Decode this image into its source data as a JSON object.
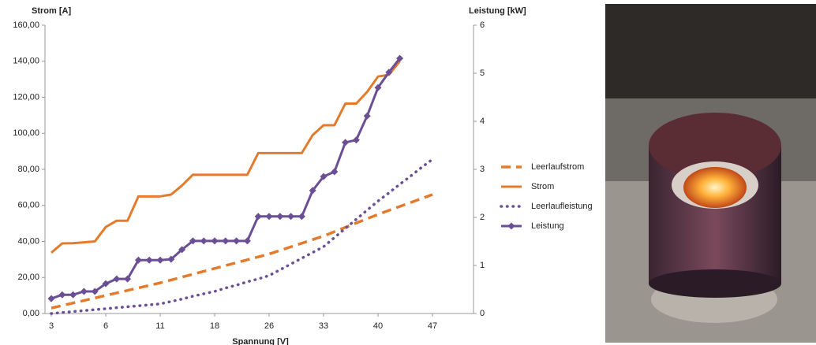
{
  "chart_data": {
    "type": "line",
    "ylabel": "Strom [A]",
    "y2label": "Leistung [kW]",
    "xlabel": "Spannung [V]",
    "categories": [
      3,
      null,
      null,
      null,
      null,
      6,
      null,
      null,
      null,
      null,
      11,
      null,
      null,
      null,
      null,
      18,
      null,
      null,
      null,
      null,
      26,
      null,
      null,
      null,
      null,
      33,
      null,
      null,
      null,
      null,
      40,
      null,
      null,
      null,
      null,
      47
    ],
    "ylim": [
      0,
      160
    ],
    "yticks": [
      {
        "value": 0,
        "label": "0,00"
      },
      {
        "value": 20,
        "label": "20,00"
      },
      {
        "value": 40,
        "label": "40,00"
      },
      {
        "value": 60,
        "label": "60,00"
      },
      {
        "value": 80,
        "label": "80,00"
      },
      {
        "value": 100,
        "label": "100,00"
      },
      {
        "value": 120,
        "label": "120,00"
      },
      {
        "value": 140,
        "label": "140,00"
      },
      {
        "value": 160,
        "label": "160,00"
      }
    ],
    "y2lim": [
      0,
      6
    ],
    "y2ticks": [
      0,
      1,
      2,
      3,
      4,
      5,
      6
    ],
    "grid": false,
    "legend": "right",
    "series": [
      {
        "name": "Leerlaufstrom",
        "color": "#e47b2c",
        "style": "dashed",
        "values": [
          3,
          4.4,
          5.8,
          7.2,
          8.6,
          10,
          11.4,
          12.8,
          14.2,
          15.6,
          17,
          18.6,
          20.2,
          21.8,
          23.4,
          25,
          26.6,
          28.2,
          29.8,
          31.4,
          33,
          35,
          37,
          39,
          41,
          43,
          45.4,
          47.8,
          50.2,
          52.6,
          55,
          57.2,
          59.4,
          61.6,
          63.8,
          66
        ]
      },
      {
        "name": "Strom",
        "color": "#e47b2c",
        "style": "solid",
        "values": [
          33.7,
          38.9,
          39,
          39.5,
          40,
          48,
          51.5,
          51.5,
          65,
          65,
          65,
          66,
          71,
          77,
          77,
          77,
          77,
          77,
          77,
          89,
          89,
          89,
          89,
          89,
          99,
          104.5,
          104.5,
          116.5,
          116.5,
          123,
          131.5,
          132.5,
          140,
          null,
          null,
          null
        ]
      },
      {
        "name": "Leerlaufleistung",
        "color": "#6a4f94",
        "style": "dotted",
        "axis": "y2",
        "values": [
          0,
          0.02,
          0.04,
          0.06,
          0.08,
          0.1,
          0.12,
          0.14,
          0.16,
          0.18,
          0.2,
          0.25,
          0.3,
          0.36,
          0.41,
          0.46,
          0.53,
          0.59,
          0.66,
          0.72,
          0.79,
          0.91,
          1.03,
          1.15,
          1.27,
          1.39,
          1.58,
          1.77,
          1.96,
          2.15,
          2.34,
          2.51,
          2.69,
          2.86,
          3.04,
          3.21
        ]
      },
      {
        "name": "Leistung",
        "color": "#6a4f94",
        "style": "solid",
        "marker": "diamond",
        "axis": "y2",
        "values": [
          0.31,
          0.39,
          0.39,
          0.46,
          0.46,
          0.62,
          0.72,
          0.72,
          1.11,
          1.11,
          1.11,
          1.13,
          1.33,
          1.51,
          1.51,
          1.51,
          1.51,
          1.51,
          1.51,
          2.02,
          2.02,
          2.02,
          2.02,
          2.02,
          2.56,
          2.85,
          2.95,
          3.56,
          3.61,
          4.11,
          4.7,
          5.02,
          5.31,
          null,
          null,
          null
        ]
      }
    ]
  }
}
